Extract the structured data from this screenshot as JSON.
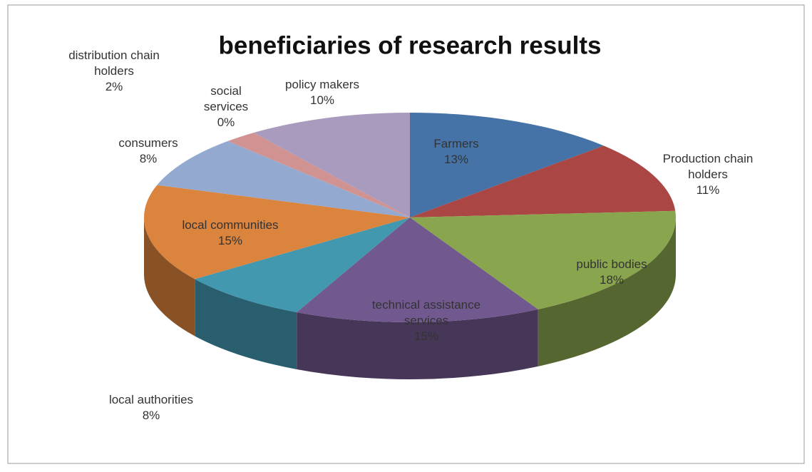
{
  "chart_data": {
    "type": "pie3d",
    "title": "beneficiaries of research results",
    "categories": [
      "Farmers",
      "Production chain holders",
      "public bodies",
      "technical assistance services",
      "local authorities",
      "local communities",
      "consumers",
      "distribution chain holders",
      "social services",
      "policy makers"
    ],
    "values": [
      13,
      11,
      18,
      15,
      8,
      15,
      8,
      2,
      0,
      10
    ],
    "value_labels": [
      "13%",
      "11%",
      "18%",
      "15%",
      "8%",
      "15%",
      "8%",
      "2%",
      "0%",
      "10%"
    ],
    "colors": [
      "#4573a7",
      "#aa4643",
      "#89a54e",
      "#71588f",
      "#4198af",
      "#db843d",
      "#93a9cf",
      "#d19392",
      "#b9cd96",
      "#a99bbd"
    ]
  }
}
